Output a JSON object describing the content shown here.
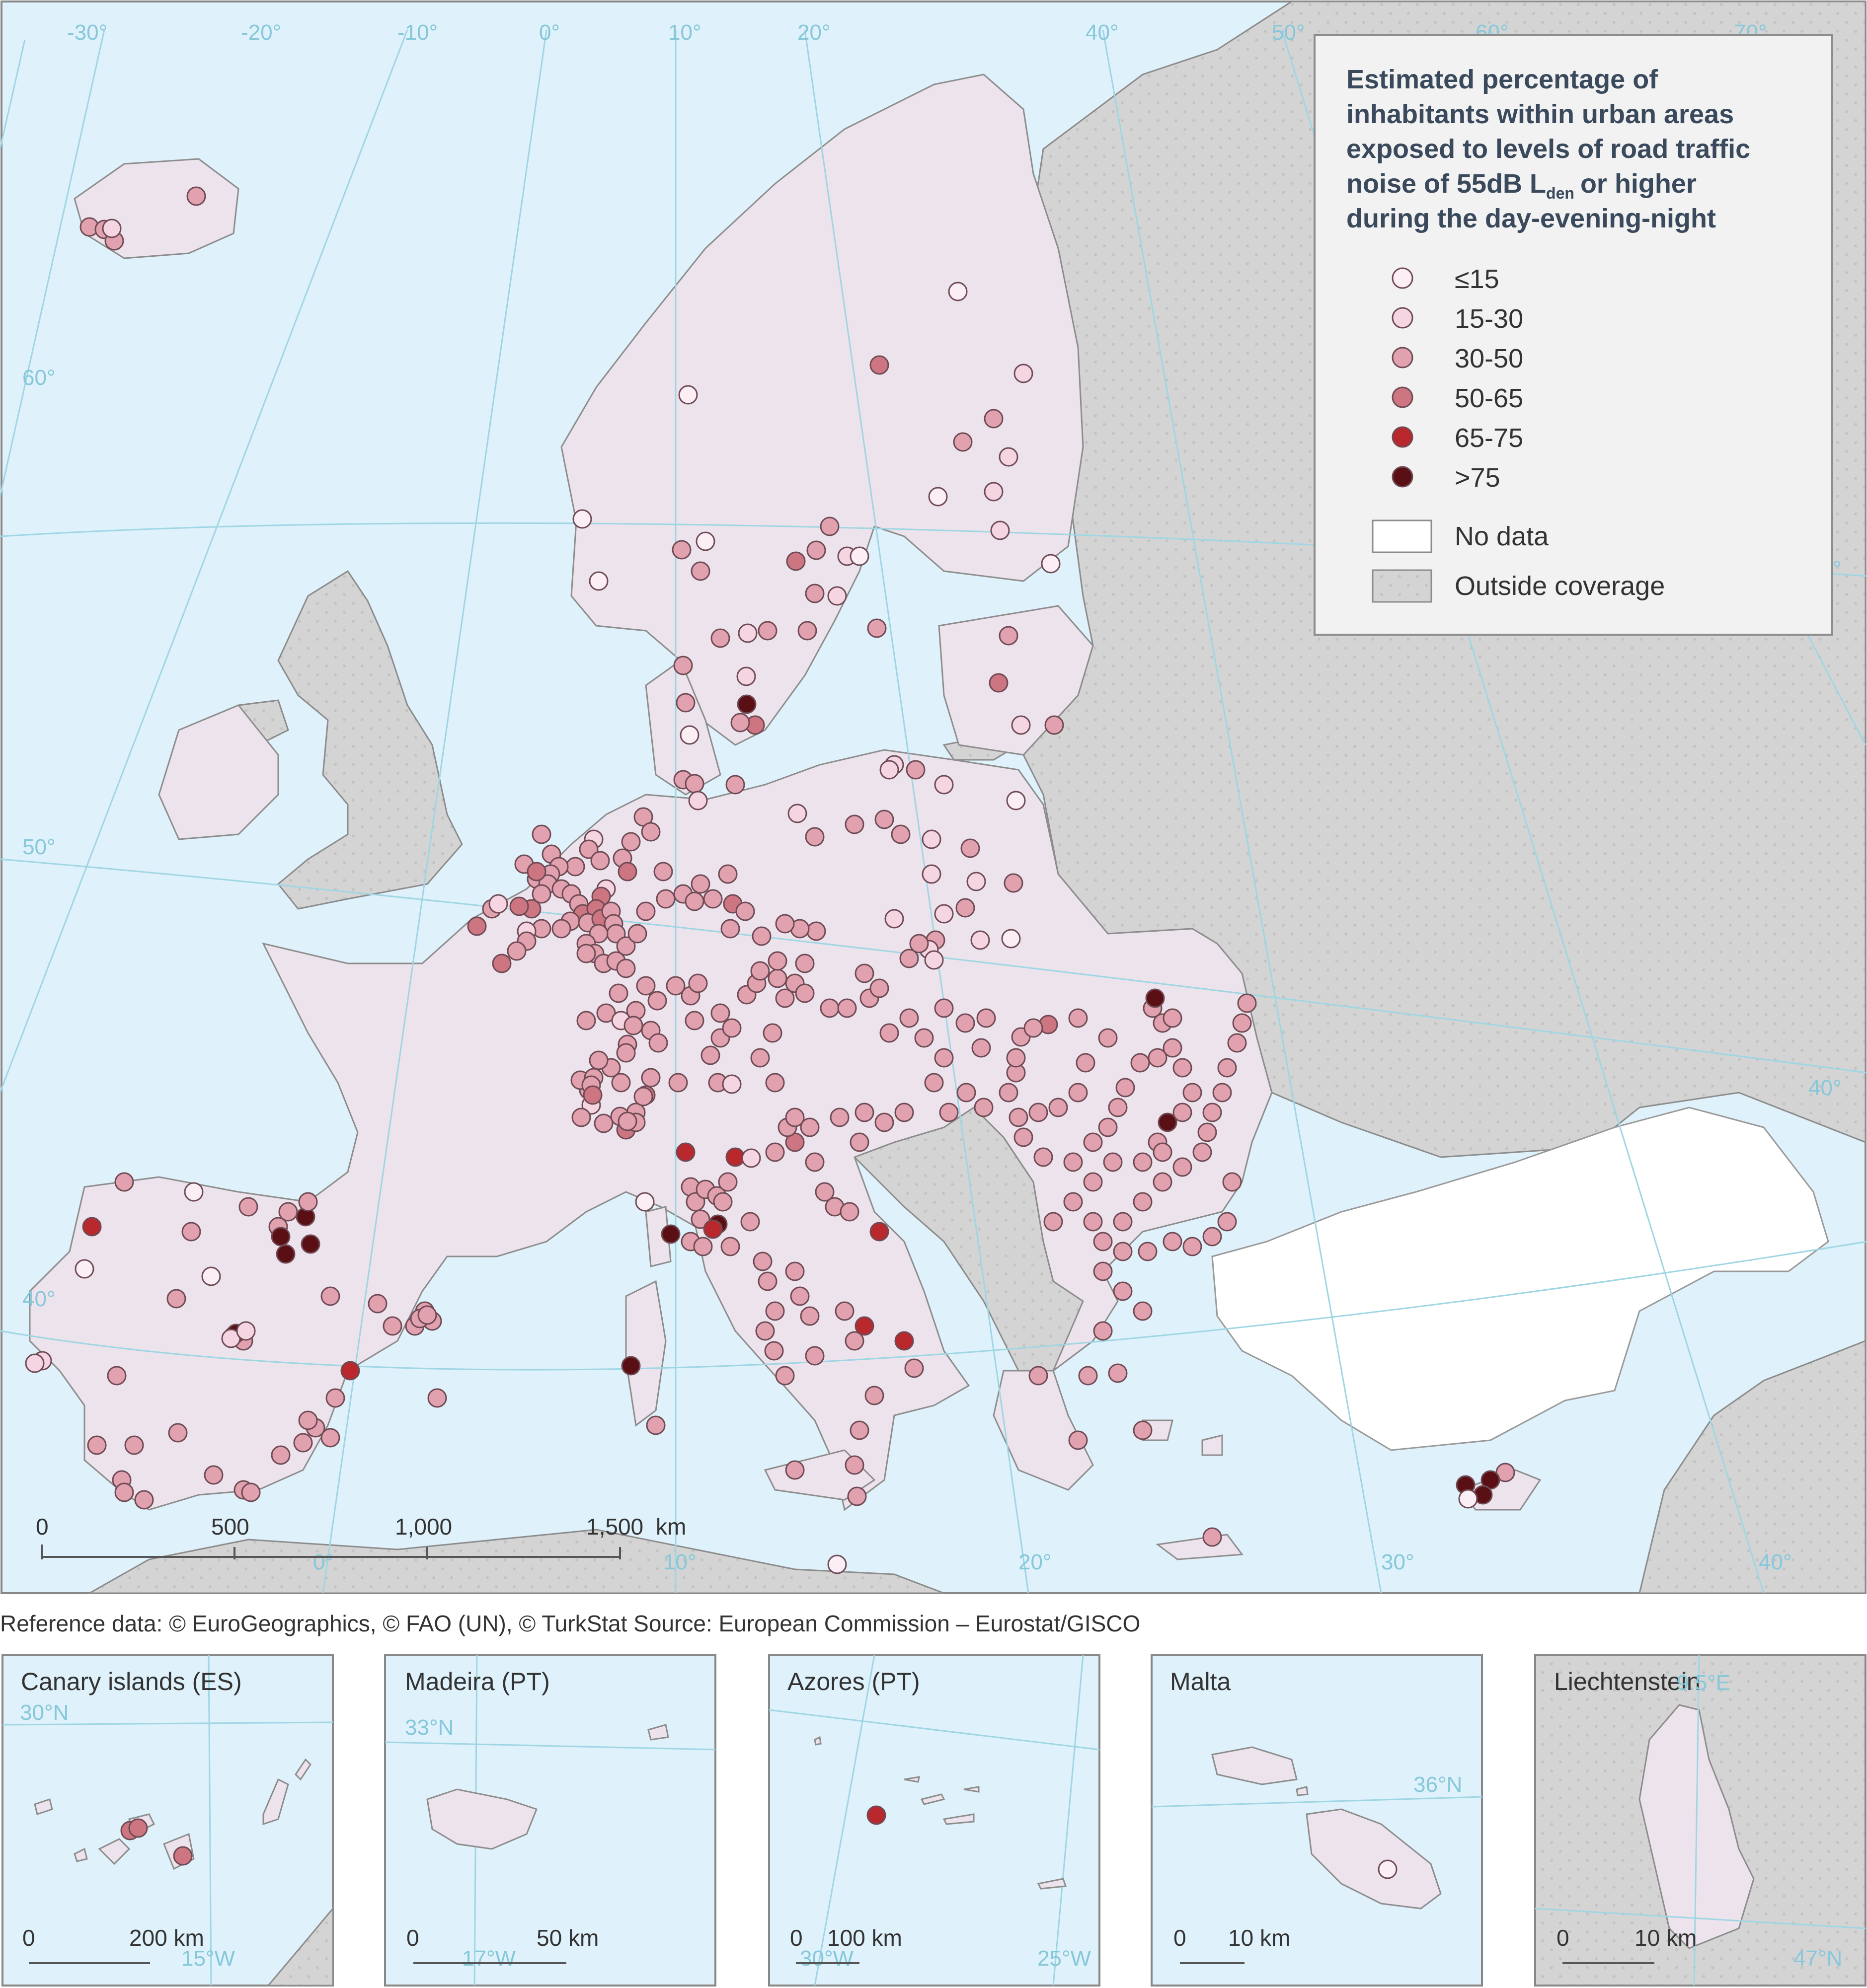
{
  "legend": {
    "title_lines": [
      "Estimated percentage of",
      "inhabitants within urban areas",
      "exposed to levels of road traffic",
      "noise of 55dB L",
      "or higher",
      "during the day-evening-night"
    ],
    "title_subscript": "den",
    "classes": [
      {
        "label": "≤15",
        "color": "#fbeef4"
      },
      {
        "label": "15-30",
        "color": "#f6d5e2"
      },
      {
        "label": "30-50",
        "color": "#e2a1ae"
      },
      {
        "label": "50-65",
        "color": "#cd7581"
      },
      {
        "label": "65-75",
        "color": "#b8282d"
      },
      {
        "label": ">75",
        "color": "#5a0f14"
      }
    ],
    "no_data": "No data",
    "outside": "Outside coverage"
  },
  "colors": {
    "sea": "#dff1fa",
    "land_in": "#ede3ec",
    "outside": "#d4d4d4",
    "no_data": "#ffffff",
    "graticule": "#9fd6e4"
  },
  "graticule_labels": {
    "top": [
      "-30°",
      "-20°",
      "-10°",
      "0°",
      "10°",
      "20°",
      "40°",
      "50°",
      "60°",
      "70°"
    ],
    "left": [
      "60°",
      "50°",
      "40°"
    ],
    "right": [
      "40°",
      "30°"
    ],
    "bottom": [
      "0°",
      "10°",
      "20°",
      "30°",
      "40°"
    ]
  },
  "scale_bar": {
    "ticks": [
      "0",
      "500",
      "1,000",
      "1,500"
    ],
    "unit": "km"
  },
  "source_text": "Reference data: © EuroGeographics, © FAO (UN), © TurkStat Source: European Commission – Eurostat/GISCO",
  "insets": [
    {
      "title": "Canary islands (ES)",
      "scale_left": "0",
      "scale_right": "200 km",
      "grat_labels": [
        "30°N",
        "15°W"
      ]
    },
    {
      "title": "Madeira (PT)",
      "scale_left": "0",
      "scale_right": "50 km",
      "grat_labels": [
        "33°N",
        "17°W"
      ]
    },
    {
      "title": "Azores (PT)",
      "scale_left": "0",
      "scale_right": "100 km",
      "grat_labels": [
        "30°W",
        "25°W"
      ]
    },
    {
      "title": "Malta",
      "scale_left": "0",
      "scale_right": "10 km",
      "grat_labels": [
        "36°N"
      ]
    },
    {
      "title": "Liechtenstein",
      "scale_left": "0",
      "scale_right": "10 km",
      "grat_labels": [
        "9.5°E",
        "47°N"
      ]
    }
  ]
}
